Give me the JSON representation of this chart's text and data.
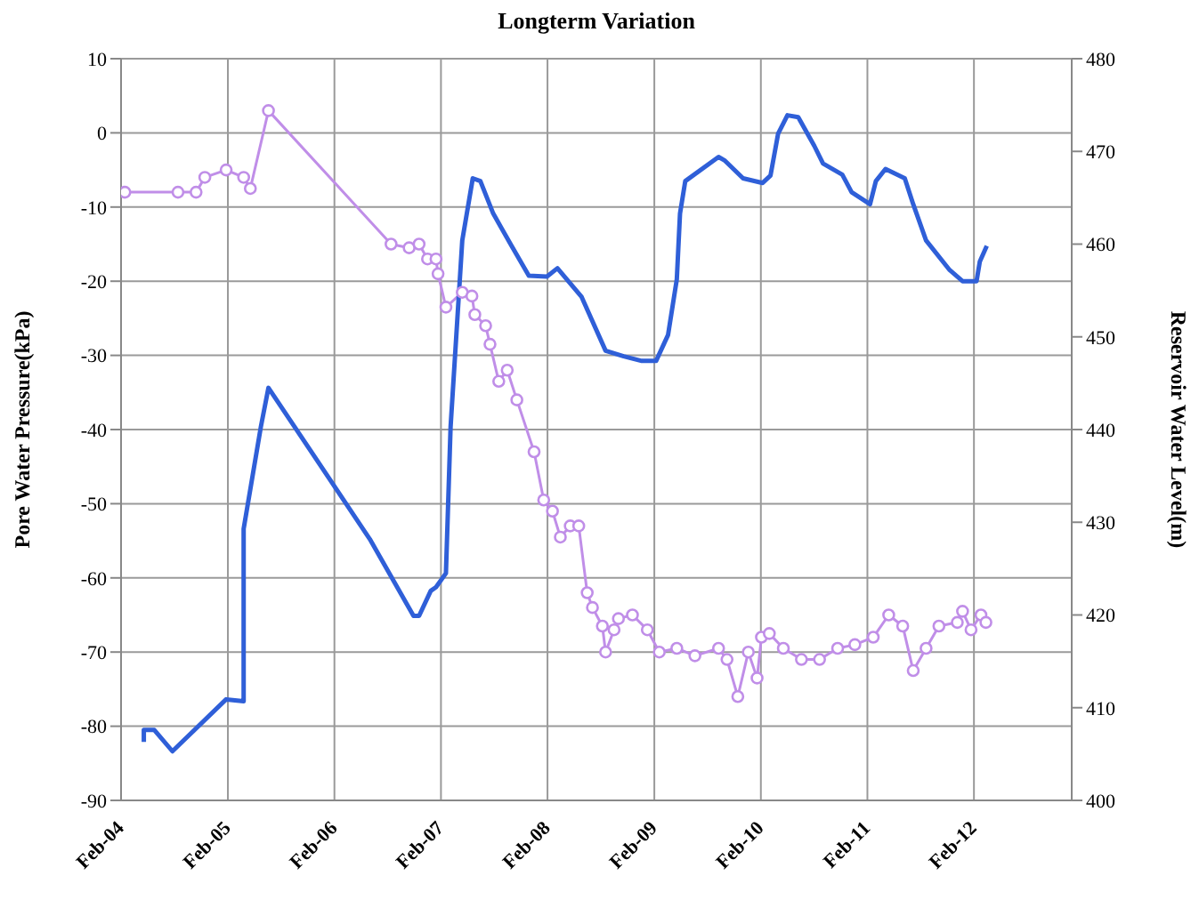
{
  "chart_data": {
    "type": "line",
    "title": "Longterm Variation",
    "ylabel": "Pore Water Pressure(kPa)",
    "y2label": "Reservoir Water Level(m)",
    "xlim": [
      "2004-02-01",
      "2013-01-01"
    ],
    "xticks": [
      {
        "value": "2004-02-01",
        "label": "Feb-04"
      },
      {
        "value": "2005-02-01",
        "label": "Feb-05"
      },
      {
        "value": "2006-02-01",
        "label": "Feb-06"
      },
      {
        "value": "2007-02-01",
        "label": "Feb-07"
      },
      {
        "value": "2008-02-01",
        "label": "Feb-08"
      },
      {
        "value": "2009-02-01",
        "label": "Feb-09"
      },
      {
        "value": "2010-02-01",
        "label": "Feb-10"
      },
      {
        "value": "2011-02-01",
        "label": "Feb-11"
      },
      {
        "value": "2012-02-01",
        "label": "Feb-12"
      }
    ],
    "ylim": [
      -90,
      10
    ],
    "yticks": [
      -90,
      -80,
      -70,
      -60,
      -50,
      -40,
      -30,
      -20,
      -10,
      0,
      10
    ],
    "y2lim": [
      400,
      480
    ],
    "y2ticks": [
      400,
      410,
      420,
      430,
      440,
      450,
      460,
      470,
      480
    ],
    "grid": true,
    "legend": false,
    "series": [
      {
        "color": "#c08ee8",
        "marker": "circle",
        "axis": "y",
        "x": [
          "2004-02-14",
          "2004-08-14",
          "2004-10-15",
          "2004-11-14",
          "2005-01-26",
          "2005-03-27",
          "2005-04-19",
          "2005-06-20",
          "2006-08-14",
          "2006-10-15",
          "2006-11-18",
          "2006-12-17",
          "2007-01-15",
          "2007-01-22",
          "2007-02-18",
          "2007-04-15",
          "2007-05-18",
          "2007-05-28",
          "2007-07-04",
          "2007-07-19",
          "2007-08-18",
          "2007-09-16",
          "2007-10-19",
          "2007-12-17",
          "2008-01-19",
          "2008-02-18",
          "2008-03-16",
          "2008-04-19",
          "2008-05-18",
          "2008-06-16",
          "2008-07-04",
          "2008-08-07",
          "2008-08-18",
          "2008-09-16",
          "2008-10-01",
          "2008-11-18",
          "2009-01-08",
          "2009-02-18",
          "2009-04-19",
          "2009-06-20",
          "2009-09-09",
          "2009-10-08",
          "2009-11-14",
          "2009-12-20",
          "2010-01-19",
          "2010-02-03",
          "2010-03-02",
          "2010-04-19",
          "2010-06-20",
          "2010-08-21",
          "2010-10-22",
          "2010-12-20",
          "2011-02-21",
          "2011-04-15",
          "2011-06-02",
          "2011-07-08",
          "2011-08-21",
          "2011-10-04",
          "2011-12-06",
          "2011-12-24",
          "2012-01-22",
          "2012-02-25",
          "2012-03-13"
        ],
        "values": [
          -8,
          -8,
          -8,
          -6,
          -5,
          -6,
          -7.5,
          3,
          -15,
          -15.5,
          -15,
          -17,
          -17,
          -19,
          -23.5,
          -21.5,
          -22,
          -24.5,
          -26,
          -28.5,
          -33.5,
          -32,
          -36,
          -43,
          -49.5,
          -51,
          -54.5,
          -53,
          -53,
          -62,
          -64,
          -66.5,
          -70,
          -67,
          -65.5,
          -65,
          -67,
          -70,
          -69.5,
          -70.5,
          -69.5,
          -71,
          -76,
          -70,
          -73.5,
          -68,
          -67.5,
          -69.5,
          -71,
          -71,
          -69.5,
          -69,
          -68,
          -65,
          -66.5,
          -72.5,
          -69.5,
          -66.5,
          -66,
          -64.5,
          -67,
          -65,
          -66
        ]
      },
      {
        "color": "#2f5fd8",
        "marker": "none",
        "axis": "y2",
        "x": [
          "2004-04-19",
          "2004-04-19",
          "2004-05-25",
          "2004-07-26",
          "2005-01-26",
          "2005-03-27",
          "2005-03-27",
          "2005-05-25",
          "2005-06-20",
          "2006-06-02",
          "2006-10-30",
          "2006-11-18",
          "2006-12-28",
          "2007-01-15",
          "2007-02-18",
          "2007-03-06",
          "2007-04-15",
          "2007-05-21",
          "2007-06-16",
          "2007-07-30",
          "2007-10-01",
          "2007-11-29",
          "2008-01-30",
          "2008-03-06",
          "2008-05-28",
          "2008-08-18",
          "2008-10-19",
          "2008-12-20",
          "2009-02-07",
          "2009-03-20",
          "2009-04-19",
          "2009-04-30",
          "2009-05-18",
          "2009-09-09",
          "2009-10-01",
          "2009-12-02",
          "2010-02-07",
          "2010-03-06",
          "2010-04-01",
          "2010-05-03",
          "2010-06-09",
          "2010-08-03",
          "2010-09-02",
          "2010-11-07",
          "2010-12-09",
          "2011-02-10",
          "2011-03-02",
          "2011-04-04",
          "2011-06-09",
          "2011-07-08",
          "2011-08-21",
          "2011-11-10",
          "2011-12-24",
          "2012-02-10",
          "2012-02-21",
          "2012-03-16"
        ],
        "values": [
          406.3,
          407.6,
          407.6,
          405.3,
          410.9,
          410.7,
          429.3,
          440.3,
          444.5,
          428.2,
          419.9,
          419.9,
          422.6,
          423,
          424.5,
          440.3,
          460.4,
          467.1,
          466.8,
          463.3,
          459.8,
          456.6,
          456.5,
          457.4,
          454.3,
          448.5,
          447.9,
          447.4,
          447.4,
          450.2,
          456.2,
          463.3,
          466.8,
          469.4,
          469,
          467.1,
          466.6,
          467.4,
          471.9,
          473.9,
          473.7,
          470.6,
          468.7,
          467.5,
          465.6,
          464.3,
          466.8,
          468.1,
          467.1,
          464.3,
          460.4,
          457.2,
          456,
          456,
          458.1,
          459.8
        ]
      }
    ]
  }
}
